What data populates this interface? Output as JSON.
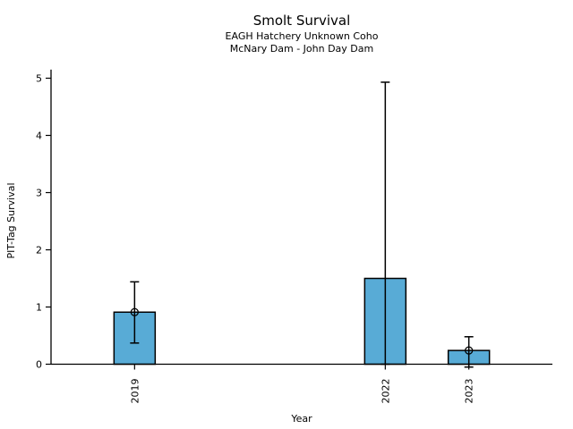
{
  "chart_data": {
    "type": "bar",
    "title": "Smolt Survival",
    "subtitle1": "EAGH Hatchery Unknown Coho",
    "subtitle2": "McNary Dam - John Day Dam",
    "xlabel": "Year",
    "ylabel": "PIT-Tag Survival",
    "categories": [
      "2019",
      "2022",
      "2023"
    ],
    "x": [
      2019,
      2022,
      2023
    ],
    "values": [
      0.91,
      1.5,
      0.24
    ],
    "ci_low": [
      0.37,
      0.0,
      -0.05
    ],
    "ci_high": [
      1.44,
      4.93,
      0.48
    ],
    "point_markers": [
      true,
      false,
      true
    ],
    "yticks": [
      0,
      1,
      2,
      3,
      4,
      5
    ],
    "ylim": [
      0,
      5.15
    ],
    "xlim": [
      2018,
      2024
    ],
    "xtick_rotation_deg": 90,
    "grid": false,
    "legend": null,
    "bar_color": "#58ABD6",
    "bar_edge_color": "#000000",
    "errorbar_color": "#000000",
    "marker_style": "open-circle",
    "background": "#FFFFFF"
  }
}
